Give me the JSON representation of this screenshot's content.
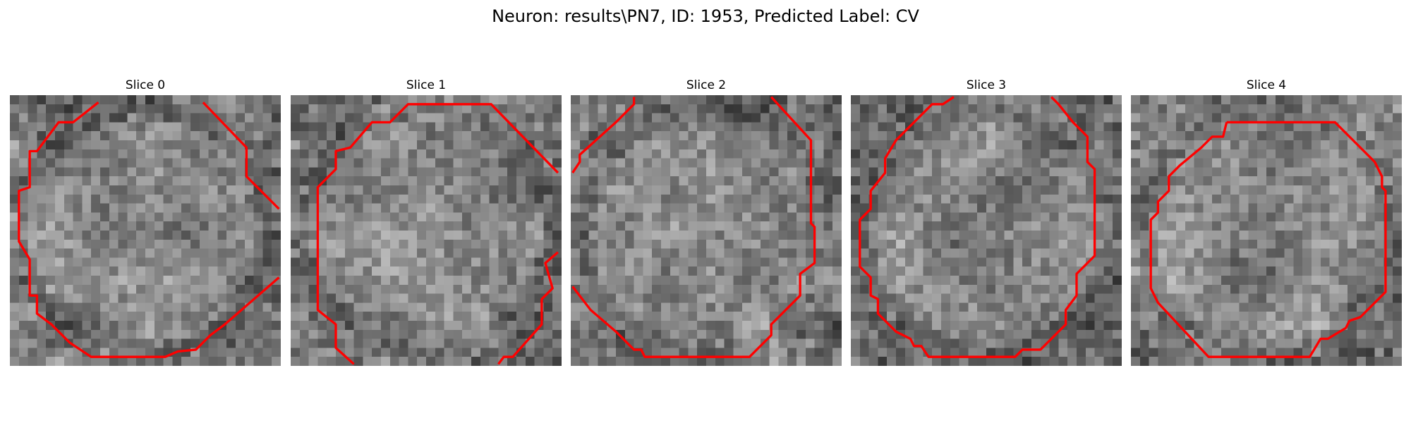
{
  "figure": {
    "title": "Neuron: results\\PN7, ID: 1953, Predicted Label: CV",
    "contour_color": "#ff0000"
  },
  "panels": [
    {
      "title": "Slice 0",
      "seed": 11,
      "contours": [
        [
          [
            4.9,
            0.4
          ],
          [
            3.5,
            1.5
          ],
          [
            2.7,
            1.5
          ],
          [
            1.5,
            3.1
          ],
          [
            1.1,
            3.1
          ],
          [
            1.1,
            5.1
          ],
          [
            0.5,
            5.3
          ],
          [
            0.5,
            8.1
          ],
          [
            1.1,
            9.1
          ],
          [
            1.1,
            11.1
          ],
          [
            1.5,
            11.1
          ],
          [
            1.5,
            12.1
          ],
          [
            2.3,
            12.7
          ],
          [
            3.3,
            13.7
          ],
          [
            3.9,
            14.1
          ],
          [
            4.5,
            14.5
          ],
          [
            8.6,
            14.5
          ],
          [
            9.3,
            14.2
          ],
          [
            10.3,
            14.1
          ],
          [
            11.1,
            13.3
          ],
          [
            11.9,
            12.7
          ],
          [
            14.9,
            10.1
          ]
        ],
        [
          [
            10.7,
            0.4
          ],
          [
            13.1,
            2.9
          ],
          [
            13.1,
            4.5
          ],
          [
            14.9,
            6.3
          ]
        ]
      ]
    },
    {
      "title": "Slice 1",
      "seed": 23,
      "contours": [
        [
          [
            3.5,
            14.9
          ],
          [
            2.5,
            14.0
          ],
          [
            2.5,
            12.7
          ],
          [
            1.5,
            11.9
          ],
          [
            1.5,
            5.1
          ],
          [
            2.5,
            4.1
          ],
          [
            2.5,
            3.1
          ],
          [
            3.3,
            2.9
          ],
          [
            4.5,
            1.5
          ],
          [
            5.5,
            1.5
          ],
          [
            6.5,
            0.5
          ],
          [
            11.1,
            0.5
          ],
          [
            14.8,
            4.3
          ]
        ],
        [
          [
            14.8,
            8.7
          ],
          [
            14.1,
            9.3
          ],
          [
            14.5,
            10.7
          ],
          [
            13.9,
            11.3
          ],
          [
            13.9,
            12.7
          ],
          [
            12.3,
            14.5
          ],
          [
            11.8,
            14.5
          ],
          [
            11.5,
            14.9
          ]
        ]
      ]
    },
    {
      "title": "Slice 2",
      "seed": 37,
      "contours": [
        [
          [
            0.1,
            10.6
          ],
          [
            1.1,
            11.9
          ],
          [
            2.5,
            13.1
          ],
          [
            2.9,
            13.5
          ],
          [
            3.5,
            14.1
          ],
          [
            3.9,
            14.1
          ],
          [
            4.1,
            14.5
          ],
          [
            9.9,
            14.5
          ],
          [
            11.1,
            13.3
          ],
          [
            11.1,
            12.7
          ],
          [
            11.9,
            11.9
          ],
          [
            12.7,
            11.1
          ],
          [
            12.7,
            9.9
          ],
          [
            13.5,
            9.3
          ],
          [
            13.5,
            7.3
          ],
          [
            13.3,
            7.1
          ],
          [
            13.3,
            2.5
          ],
          [
            11.1,
            0.1
          ]
        ],
        [
          [
            0.1,
            4.3
          ],
          [
            0.5,
            3.7
          ],
          [
            0.5,
            3.3
          ],
          [
            2.5,
            1.5
          ],
          [
            3.5,
            0.5
          ],
          [
            3.5,
            0.1
          ]
        ]
      ]
    },
    {
      "title": "Slice 3",
      "seed": 53,
      "contours": [
        [
          [
            5.7,
            0.1
          ],
          [
            5.1,
            0.5
          ],
          [
            4.5,
            0.5
          ],
          [
            2.5,
            2.5
          ],
          [
            1.9,
            3.5
          ],
          [
            1.9,
            4.3
          ],
          [
            1.1,
            5.3
          ],
          [
            1.1,
            6.3
          ],
          [
            0.5,
            6.9
          ],
          [
            0.5,
            9.5
          ],
          [
            1.1,
            10.1
          ],
          [
            1.1,
            11.1
          ],
          [
            1.5,
            11.3
          ],
          [
            1.5,
            12.1
          ],
          [
            2.5,
            13.1
          ],
          [
            3.3,
            13.5
          ],
          [
            3.5,
            13.9
          ],
          [
            3.9,
            13.9
          ],
          [
            4.3,
            14.5
          ],
          [
            9.1,
            14.5
          ],
          [
            9.5,
            14.1
          ],
          [
            10.5,
            14.1
          ],
          [
            11.9,
            12.7
          ],
          [
            11.9,
            11.9
          ],
          [
            12.5,
            11.1
          ],
          [
            12.5,
            9.9
          ],
          [
            13.5,
            8.9
          ],
          [
            13.5,
            4.1
          ],
          [
            13.1,
            3.7
          ],
          [
            13.1,
            2.3
          ],
          [
            12.3,
            1.5
          ],
          [
            11.5,
            0.5
          ],
          [
            11.1,
            0.1
          ]
        ]
      ]
    },
    {
      "title": "Slice 4",
      "seed": 71,
      "contours": [
        [
          [
            5.3,
            1.5
          ],
          [
            11.3,
            1.5
          ],
          [
            12.1,
            2.3
          ],
          [
            13.5,
            3.7
          ],
          [
            13.9,
            4.5
          ],
          [
            13.9,
            5.1
          ],
          [
            14.1,
            5.3
          ],
          [
            14.1,
            10.9
          ],
          [
            13.5,
            11.5
          ],
          [
            12.7,
            12.3
          ],
          [
            12.1,
            12.5
          ],
          [
            11.9,
            12.9
          ],
          [
            10.9,
            13.5
          ],
          [
            10.5,
            13.5
          ],
          [
            9.9,
            14.5
          ],
          [
            4.3,
            14.5
          ],
          [
            1.5,
            11.5
          ],
          [
            1.1,
            10.7
          ],
          [
            1.1,
            6.9
          ],
          [
            1.5,
            6.5
          ],
          [
            1.5,
            5.9
          ],
          [
            2.1,
            5.3
          ],
          [
            2.1,
            4.5
          ],
          [
            2.7,
            3.9
          ],
          [
            3.9,
            2.9
          ],
          [
            4.5,
            2.3
          ],
          [
            5.1,
            2.3
          ],
          [
            5.3,
            1.5
          ]
        ]
      ]
    }
  ]
}
